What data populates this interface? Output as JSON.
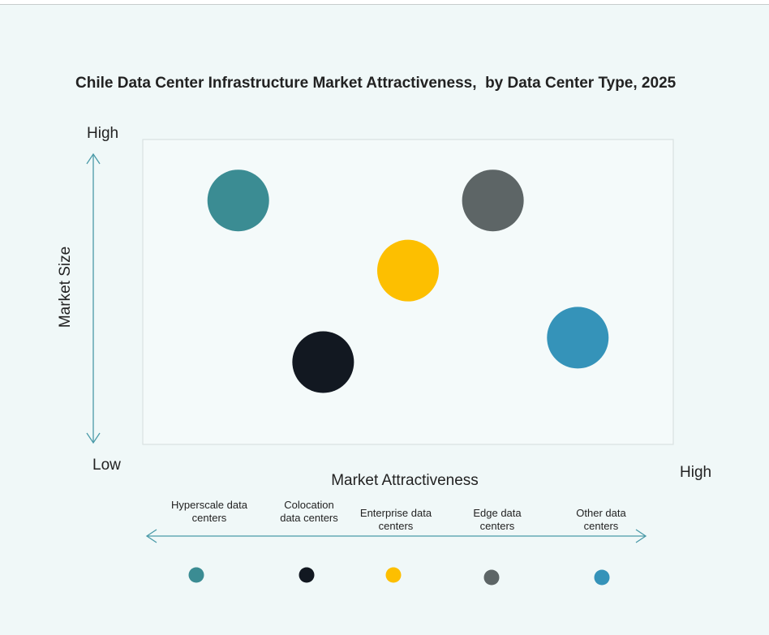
{
  "chart_data": {
    "type": "scatter",
    "title": "Chile Data Center Infrastructure Market Attractiveness,  by Data Center Type, 2025",
    "xlabel": "Market Attractiveness",
    "ylabel": "Market Size",
    "x_low_label": "Low",
    "x_high_label": "High",
    "y_high_label": "High",
    "xlim": [
      0,
      100
    ],
    "ylim": [
      0,
      100
    ],
    "grid": false,
    "legend_placement": "bottom",
    "series": [
      {
        "name": "Hyperscale data centers",
        "x": 18,
        "y": 80,
        "color": "#3b8c93"
      },
      {
        "name": "Colocation data centers",
        "x": 34,
        "y": 27,
        "color": "#121821"
      },
      {
        "name": "Enterprise data centers",
        "x": 50,
        "y": 57,
        "color": "#fdbf00"
      },
      {
        "name": "Edge data centers",
        "x": 66,
        "y": 80,
        "color": "#5d6566"
      },
      {
        "name": "Other data centers",
        "x": 82,
        "y": 35,
        "color": "#3593b9"
      }
    ],
    "legend_lines": [
      [
        "Hyperscale data",
        "centers"
      ],
      [
        "Colocation",
        "data centers"
      ],
      [
        "Enterprise data",
        "centers"
      ],
      [
        "Edge data",
        "centers"
      ],
      [
        "Other data",
        "centers"
      ]
    ]
  }
}
